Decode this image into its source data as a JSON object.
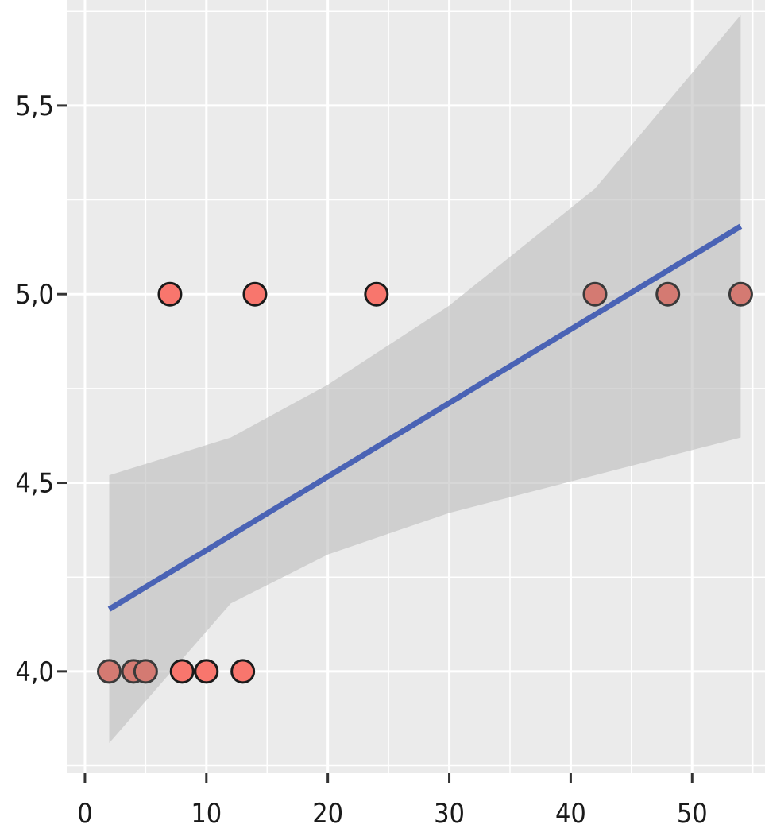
{
  "chart_data": {
    "type": "scatter",
    "title": "",
    "xlabel": "",
    "ylabel": "",
    "xlim": [
      -1.5,
      56
    ],
    "ylim": [
      3.73,
      5.78
    ],
    "x_ticks": [
      0,
      10,
      20,
      30,
      40,
      50
    ],
    "x_tick_labels": [
      "0",
      "10",
      "20",
      "30",
      "40",
      "50"
    ],
    "y_ticks": [
      4.0,
      4.5,
      5.0,
      5.5
    ],
    "y_tick_labels": [
      "4,0",
      "4,5",
      "5,0",
      "5,5"
    ],
    "grid": true,
    "legend": "none",
    "points": [
      {
        "x": 2,
        "y": 4.0
      },
      {
        "x": 4,
        "y": 4.0
      },
      {
        "x": 5,
        "y": 4.0
      },
      {
        "x": 8,
        "y": 4.0
      },
      {
        "x": 10,
        "y": 4.0
      },
      {
        "x": 13,
        "y": 4.0
      },
      {
        "x": 7,
        "y": 5.0
      },
      {
        "x": 14,
        "y": 5.0
      },
      {
        "x": 24,
        "y": 5.0
      },
      {
        "x": 42,
        "y": 5.0
      },
      {
        "x": 48,
        "y": 5.0
      },
      {
        "x": 54,
        "y": 5.0
      }
    ],
    "fit_line": {
      "x": [
        2,
        54
      ],
      "y": [
        4.165,
        5.18
      ]
    },
    "confidence_band": {
      "x": [
        2,
        12,
        20,
        30,
        42,
        54
      ],
      "lower": [
        3.81,
        4.18,
        4.31,
        4.42,
        4.52,
        4.62
      ],
      "upper": [
        4.52,
        4.62,
        4.76,
        4.97,
        5.28,
        5.74
      ]
    },
    "colors": {
      "panel": "#ebebeb",
      "grid": "#ffffff",
      "point_fill": "#f8766d",
      "point_stroke": "#1a1a1a",
      "fit_line": "#4a63b5",
      "band": "#bdbdbd"
    }
  }
}
